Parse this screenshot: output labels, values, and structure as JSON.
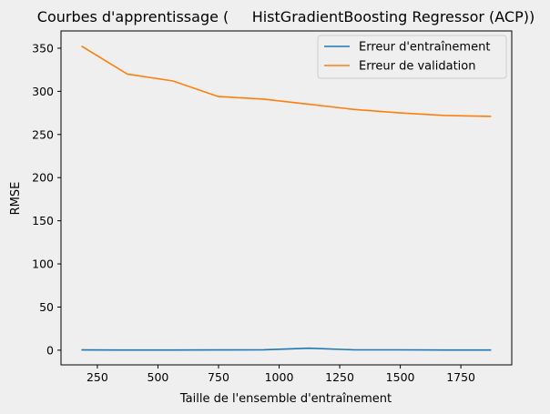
{
  "chart_data": {
    "type": "line",
    "title": "Courbes d'apprentissage (     HistGradientBoosting Regressor (ACP))",
    "xlabel": "Taille de l'ensemble d'entraînement",
    "ylabel": "RMSE",
    "xlim": [
      100,
      1960
    ],
    "ylim": [
      -17,
      370
    ],
    "xticks": [
      250,
      500,
      750,
      1000,
      1250,
      1500,
      1750
    ],
    "yticks": [
      0,
      50,
      100,
      150,
      200,
      250,
      300,
      350
    ],
    "grid": false,
    "legend_position": "top-right",
    "series": [
      {
        "name": "Erreur d'entraînement",
        "color": "#1f77b4",
        "x": [
          187,
          374,
          562,
          749,
          936,
          1123,
          1310,
          1498,
          1685,
          1872
        ],
        "values": [
          0.3,
          0.2,
          0.2,
          0.3,
          0.5,
          2.3,
          0.4,
          0.4,
          0.2,
          0.2
        ]
      },
      {
        "name": "Erreur de validation",
        "color": "#ff7f0e",
        "x": [
          187,
          374,
          562,
          749,
          936,
          1123,
          1310,
          1498,
          1685,
          1872
        ],
        "values": [
          352,
          320,
          312,
          294,
          291,
          285,
          279,
          275,
          272,
          271
        ]
      }
    ]
  }
}
